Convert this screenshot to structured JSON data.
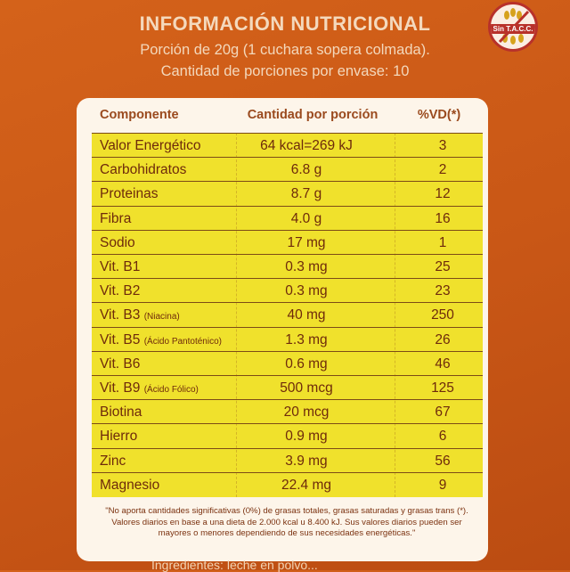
{
  "heading": {
    "title": "INFORMACIÓN NUTRICIONAL",
    "portion": "Porción de 20g (1 cuchara sopera colmada).",
    "servings": "Cantidad de porciones por envase: 10"
  },
  "badge": {
    "label": "Sin T.A.C.C."
  },
  "table": {
    "columns": [
      "Componente",
      "Cantidad por porción",
      "%VD(*)"
    ],
    "rows": [
      {
        "name": "Valor Energético",
        "note": "",
        "amount": "64 kcal=269 kJ",
        "vd": "3"
      },
      {
        "name": "Carbohidratos",
        "note": "",
        "amount": "6.8 g",
        "vd": "2"
      },
      {
        "name": "Proteinas",
        "note": "",
        "amount": "8.7 g",
        "vd": "12"
      },
      {
        "name": "Fibra",
        "note": "",
        "amount": "4.0 g",
        "vd": "16"
      },
      {
        "name": "Sodio",
        "note": "",
        "amount": "17 mg",
        "vd": "1"
      },
      {
        "name": "Vit. B1",
        "note": "",
        "amount": "0.3 mg",
        "vd": "25"
      },
      {
        "name": "Vit. B2",
        "note": "",
        "amount": "0.3 mg",
        "vd": "23"
      },
      {
        "name": "Vit. B3",
        "note": "(Niacina)",
        "amount": "40 mg",
        "vd": "250"
      },
      {
        "name": "Vit. B5",
        "note": "(Ácido Pantoténico)",
        "amount": "1.3 mg",
        "vd": "26"
      },
      {
        "name": "Vit. B6",
        "note": "",
        "amount": "0.6 mg",
        "vd": "46"
      },
      {
        "name": "Vit. B9",
        "note": "(Ácido Fólico)",
        "amount": "500 mcg",
        "vd": "125"
      },
      {
        "name": "Biotina",
        "note": "",
        "amount": "20 mcg",
        "vd": "67"
      },
      {
        "name": "Hierro",
        "note": "",
        "amount": "0.9 mg",
        "vd": "6"
      },
      {
        "name": "Zinc",
        "note": "",
        "amount": "3.9 mg",
        "vd": "56"
      },
      {
        "name": "Magnesio",
        "note": "",
        "amount": "22.4 mg",
        "vd": "9"
      }
    ]
  },
  "footnote": "\"No aporta cantidades significativas (0%) de grasas totales, grasas saturadas y grasas trans (*). Valores diarios en base a una dieta de 2.000 kcal u 8.400 kJ. Sus valores diarios pueden ser mayores o menores dependiendo de sus necesidades energéticas.\"",
  "bottom_text": "Ingredientes: leche en polvo..."
}
